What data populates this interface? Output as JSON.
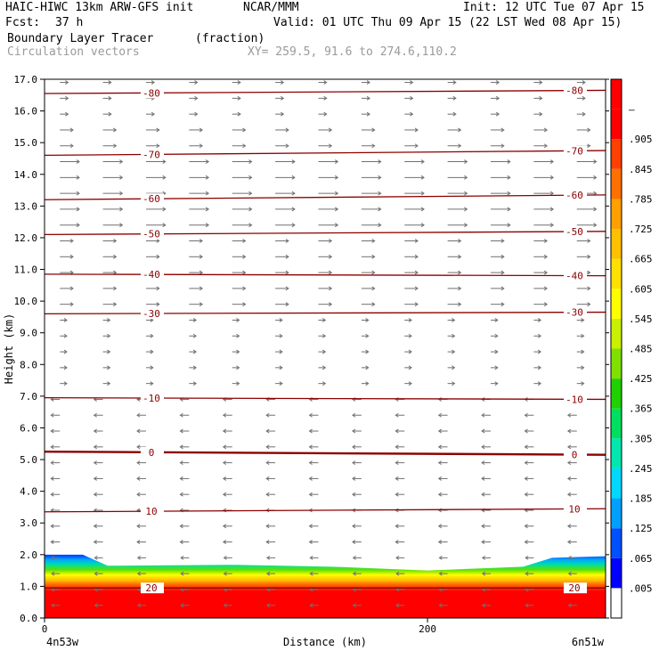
{
  "header": {
    "model": "HAIC-HIWC 13km ARW-GFS init",
    "org": "NCAR/MMM",
    "init": "Init: 12 UTC Tue 07 Apr 15",
    "fcst_label": "Fcst:",
    "fcst_value": "37 h",
    "valid": "Valid: 01 UTC Thu 09 Apr 15 (22 LST Wed 08 Apr 15)",
    "field": "Boundary Layer Tracer",
    "units": "(fraction)",
    "vectors": "Circulation vectors",
    "xy": "XY= 259.5, 91.6 to 274.6,110.2"
  },
  "chart_data": {
    "type": "heatmap",
    "xlabel": "Distance (km)",
    "ylabel": "Height (km)",
    "xlim": [
      0,
      293
    ],
    "ylim": [
      0,
      17
    ],
    "x_ticks": [
      0,
      200
    ],
    "y_ticks": [
      "0.0",
      "1.0",
      "2.0",
      "3.0",
      "4.0",
      "5.0",
      "6.0",
      "7.0",
      "8.0",
      "9.0",
      "10.0",
      "11.0",
      "12.0",
      "13.0",
      "14.0",
      "15.0",
      "16.0",
      "17.0"
    ],
    "endpoints": {
      "left": "4n53w",
      "right": "6n51w"
    },
    "colorbar": {
      "labels": [
        ".005",
        ".065",
        ".125",
        ".185",
        ".245",
        ".305",
        ".365",
        ".425",
        ".485",
        ".545",
        ".605",
        ".665",
        ".725",
        ".785",
        ".845",
        ".905",
        "–"
      ],
      "colors": [
        "#ffffff",
        "#0000ff",
        "#0050ff",
        "#00a0ff",
        "#00d8ff",
        "#00e8b0",
        "#00e060",
        "#20d000",
        "#80e000",
        "#c8f000",
        "#ffff00",
        "#ffe000",
        "#ffc000",
        "#ffa000",
        "#ff7000",
        "#ff4000",
        "#ff0000",
        "#ff0000"
      ]
    },
    "isotherms": [
      {
        "value": 20,
        "label": "20",
        "heights": [
          0.95,
          0.95
        ]
      },
      {
        "value": 10,
        "label": "10",
        "heights": [
          3.35,
          3.45
        ]
      },
      {
        "value": 0,
        "label": "0",
        "heights": [
          5.25,
          5.15
        ]
      },
      {
        "value": -10,
        "label": "-10",
        "heights": [
          6.95,
          6.9
        ]
      },
      {
        "value": -30,
        "label": "-30",
        "heights": [
          9.6,
          9.65
        ]
      },
      {
        "value": -40,
        "label": "-40",
        "heights": [
          10.85,
          10.8
        ]
      },
      {
        "value": -50,
        "label": "-50",
        "heights": [
          12.1,
          12.2
        ]
      },
      {
        "value": -60,
        "label": "-60",
        "heights": [
          13.2,
          13.35
        ]
      },
      {
        "value": -70,
        "label": "-70",
        "heights": [
          14.6,
          14.75
        ]
      },
      {
        "value": -80,
        "label": "-80",
        "heights": [
          16.55,
          16.65
        ]
      }
    ]
  }
}
